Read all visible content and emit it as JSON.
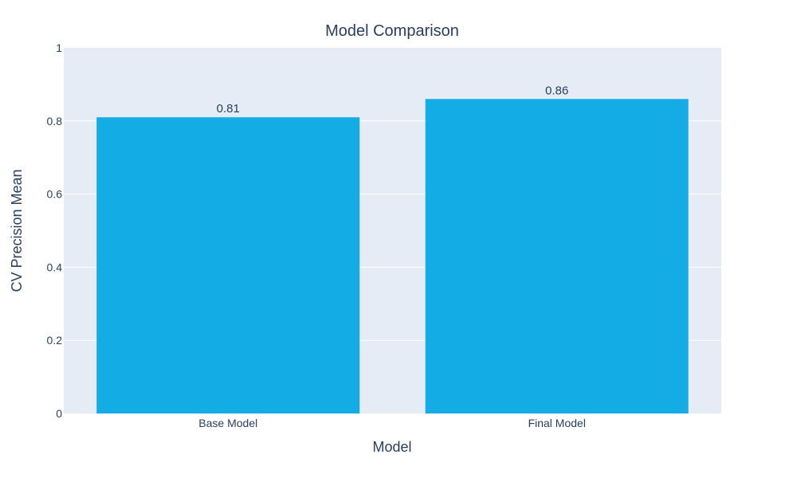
{
  "chart_data": {
    "type": "bar",
    "title": "Model Comparison",
    "xlabel": "Model",
    "ylabel": "CV Precision Mean",
    "categories": [
      "Base Model",
      "Final Model"
    ],
    "values": [
      0.81,
      0.86
    ],
    "data_labels": [
      "0.81",
      "0.86"
    ],
    "ylim": [
      0,
      1
    ],
    "y_ticks": [
      0,
      0.2,
      0.4,
      0.6,
      0.8,
      1
    ],
    "y_tick_labels": [
      "0",
      "0.2",
      "0.4",
      "0.6",
      "0.8",
      "1"
    ],
    "grid": true,
    "legend": "none",
    "colors": {
      "bar": "#13ace4",
      "plot_background": "#e5ecf6",
      "gridline": "#ffffff",
      "text": "#2a3f5f"
    }
  }
}
